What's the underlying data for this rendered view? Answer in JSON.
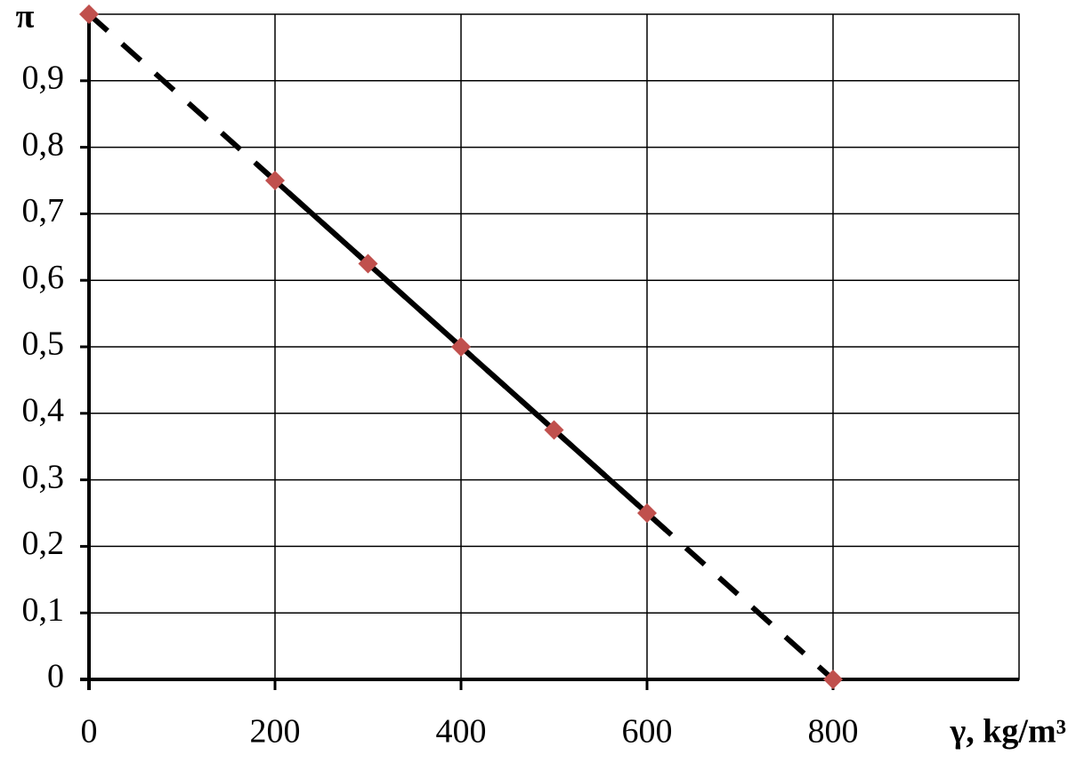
{
  "chart_data": {
    "type": "scatter",
    "x_label": "γ, kg/m³",
    "y_label": "π",
    "xlim": [
      0,
      1000
    ],
    "ylim": [
      0,
      1
    ],
    "xticks": [
      0,
      200,
      400,
      600,
      800
    ],
    "yticks": [
      0,
      {
        "value": 0.1,
        "label": "0,1"
      },
      {
        "value": 0.2,
        "label": "0,2"
      },
      {
        "value": 0.3,
        "label": "0,3"
      },
      {
        "value": 0.4,
        "label": "0,4"
      },
      {
        "value": 0.5,
        "label": "0,5"
      },
      {
        "value": 0.6,
        "label": "0,6"
      },
      {
        "value": 0.7,
        "label": "0,7"
      },
      {
        "value": 0.8,
        "label": "0,8"
      },
      {
        "value": 0.9,
        "label": "0,9"
      }
    ],
    "grid": true,
    "series": [
      {
        "type": "line",
        "style": "dashed",
        "color": "#000000",
        "x": [
          0,
          800
        ],
        "values": [
          1,
          0
        ]
      },
      {
        "type": "line",
        "style": "solid",
        "color": "#000000",
        "x": [
          180,
          620
        ],
        "values": [
          0.775,
          0.225
        ]
      },
      {
        "type": "scatter",
        "marker": "diamond",
        "color": "#c0504d",
        "x": [
          0,
          200,
          300,
          400,
          500,
          600,
          800
        ],
        "values": [
          1,
          0.75,
          0.625,
          0.5,
          0.375,
          0.25,
          0
        ]
      }
    ]
  }
}
